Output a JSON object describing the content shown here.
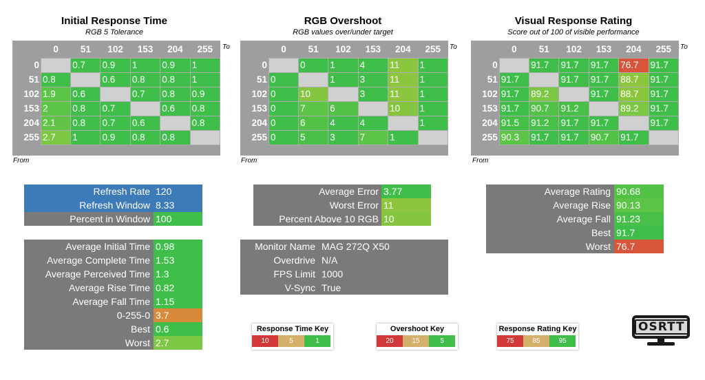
{
  "charts": [
    {
      "title": "Initial Response Time",
      "subtitle": "RGB 5 Tolerance",
      "to_label": "To",
      "from_label": "From",
      "cols": [
        "0",
        "51",
        "102",
        "153",
        "204",
        "255"
      ],
      "rows": [
        {
          "label": "0",
          "cells": [
            {
              "v": "",
              "c": ""
            },
            {
              "v": "0.7",
              "c": "#3fbf4a"
            },
            {
              "v": "0.9",
              "c": "#3fbf4a"
            },
            {
              "v": "1",
              "c": "#3fbf4a"
            },
            {
              "v": "0.9",
              "c": "#3fbf4a"
            },
            {
              "v": "1",
              "c": "#3fbf4a"
            }
          ]
        },
        {
          "label": "51",
          "cells": [
            {
              "v": "0.8",
              "c": "#3fbf4a"
            },
            {
              "v": "",
              "c": ""
            },
            {
              "v": "0.6",
              "c": "#3fbf4a"
            },
            {
              "v": "0.8",
              "c": "#3fbf4a"
            },
            {
              "v": "0.8",
              "c": "#3fbf4a"
            },
            {
              "v": "1",
              "c": "#3fbf4a"
            }
          ]
        },
        {
          "label": "102",
          "cells": [
            {
              "v": "1.9",
              "c": "#5cc447"
            },
            {
              "v": "0.6",
              "c": "#3fbf4a"
            },
            {
              "v": "",
              "c": ""
            },
            {
              "v": "0.7",
              "c": "#3fbf4a"
            },
            {
              "v": "0.8",
              "c": "#3fbf4a"
            },
            {
              "v": "0.9",
              "c": "#3fbf4a"
            }
          ]
        },
        {
          "label": "153",
          "cells": [
            {
              "v": "2",
              "c": "#5cc447"
            },
            {
              "v": "0.8",
              "c": "#3fbf4a"
            },
            {
              "v": "0.7",
              "c": "#3fbf4a"
            },
            {
              "v": "",
              "c": ""
            },
            {
              "v": "0.6",
              "c": "#3fbf4a"
            },
            {
              "v": "0.8",
              "c": "#3fbf4a"
            }
          ]
        },
        {
          "label": "204",
          "cells": [
            {
              "v": "2.1",
              "c": "#62c446"
            },
            {
              "v": "0.8",
              "c": "#3fbf4a"
            },
            {
              "v": "0.7",
              "c": "#3fbf4a"
            },
            {
              "v": "0.6",
              "c": "#3fbf4a"
            },
            {
              "v": "",
              "c": ""
            },
            {
              "v": "0.8",
              "c": "#3fbf4a"
            }
          ]
        },
        {
          "label": "255",
          "cells": [
            {
              "v": "2.7",
              "c": "#7cc743"
            },
            {
              "v": "1",
              "c": "#3fbf4a"
            },
            {
              "v": "0.9",
              "c": "#3fbf4a"
            },
            {
              "v": "0.8",
              "c": "#3fbf4a"
            },
            {
              "v": "0.8",
              "c": "#3fbf4a"
            },
            {
              "v": "",
              "c": ""
            }
          ]
        }
      ]
    },
    {
      "title": "RGB Overshoot",
      "subtitle": "RGB values over/under target",
      "to_label": "To",
      "from_label": "From",
      "cols": [
        "0",
        "51",
        "102",
        "153",
        "204",
        "255"
      ],
      "rows": [
        {
          "label": "0",
          "cells": [
            {
              "v": "",
              "c": ""
            },
            {
              "v": "0",
              "c": "#3fbf4a"
            },
            {
              "v": "1",
              "c": "#3fbf4a"
            },
            {
              "v": "4",
              "c": "#3fbf4a"
            },
            {
              "v": "11",
              "c": "#8cc63f"
            },
            {
              "v": "1",
              "c": "#3fbf4a"
            }
          ]
        },
        {
          "label": "51",
          "cells": [
            {
              "v": "0",
              "c": "#3fbf4a"
            },
            {
              "v": "",
              "c": ""
            },
            {
              "v": "1",
              "c": "#3fbf4a"
            },
            {
              "v": "3",
              "c": "#3fbf4a"
            },
            {
              "v": "11",
              "c": "#8cc63f"
            },
            {
              "v": "1",
              "c": "#3fbf4a"
            }
          ]
        },
        {
          "label": "102",
          "cells": [
            {
              "v": "0",
              "c": "#3fbf4a"
            },
            {
              "v": "10",
              "c": "#86c540"
            },
            {
              "v": "",
              "c": ""
            },
            {
              "v": "3",
              "c": "#3fbf4a"
            },
            {
              "v": "11",
              "c": "#8cc63f"
            },
            {
              "v": "1",
              "c": "#3fbf4a"
            }
          ]
        },
        {
          "label": "153",
          "cells": [
            {
              "v": "0",
              "c": "#3fbf4a"
            },
            {
              "v": "7",
              "c": "#5cc447"
            },
            {
              "v": "6",
              "c": "#52c247"
            },
            {
              "v": "",
              "c": ""
            },
            {
              "v": "10",
              "c": "#86c540"
            },
            {
              "v": "1",
              "c": "#3fbf4a"
            }
          ]
        },
        {
          "label": "204",
          "cells": [
            {
              "v": "0",
              "c": "#3fbf4a"
            },
            {
              "v": "6",
              "c": "#52c247"
            },
            {
              "v": "4",
              "c": "#3fbf4a"
            },
            {
              "v": "4",
              "c": "#3fbf4a"
            },
            {
              "v": "",
              "c": ""
            },
            {
              "v": "1",
              "c": "#3fbf4a"
            }
          ]
        },
        {
          "label": "255",
          "cells": [
            {
              "v": "0",
              "c": "#3fbf4a"
            },
            {
              "v": "5",
              "c": "#48c048"
            },
            {
              "v": "3",
              "c": "#3fbf4a"
            },
            {
              "v": "7",
              "c": "#5cc447"
            },
            {
              "v": "1",
              "c": "#3fbf4a"
            },
            {
              "v": "",
              "c": ""
            }
          ]
        }
      ]
    },
    {
      "title": "Visual Response Rating",
      "subtitle": "Score out of 100 of visible performance",
      "to_label": "To",
      "from_label": "From",
      "cols": [
        "0",
        "51",
        "102",
        "153",
        "204",
        "255"
      ],
      "rows": [
        {
          "label": "0",
          "cells": [
            {
              "v": "",
              "c": ""
            },
            {
              "v": "91.7",
              "c": "#3fbf4a"
            },
            {
              "v": "91.7",
              "c": "#3fbf4a"
            },
            {
              "v": "91.7",
              "c": "#3fbf4a"
            },
            {
              "v": "76.7",
              "c": "#d8553c"
            },
            {
              "v": "91.7",
              "c": "#3fbf4a"
            }
          ]
        },
        {
          "label": "51",
          "cells": [
            {
              "v": "91.7",
              "c": "#3fbf4a"
            },
            {
              "v": "",
              "c": ""
            },
            {
              "v": "91.7",
              "c": "#3fbf4a"
            },
            {
              "v": "91.7",
              "c": "#3fbf4a"
            },
            {
              "v": "88.7",
              "c": "#8cc63f"
            },
            {
              "v": "91.7",
              "c": "#3fbf4a"
            }
          ]
        },
        {
          "label": "102",
          "cells": [
            {
              "v": "91.7",
              "c": "#3fbf4a"
            },
            {
              "v": "89.2",
              "c": "#7cc743"
            },
            {
              "v": "",
              "c": ""
            },
            {
              "v": "91.7",
              "c": "#3fbf4a"
            },
            {
              "v": "88.7",
              "c": "#8cc63f"
            },
            {
              "v": "91.7",
              "c": "#3fbf4a"
            }
          ]
        },
        {
          "label": "153",
          "cells": [
            {
              "v": "91.7",
              "c": "#3fbf4a"
            },
            {
              "v": "90.7",
              "c": "#52c247"
            },
            {
              "v": "91.2",
              "c": "#48c048"
            },
            {
              "v": "",
              "c": ""
            },
            {
              "v": "89.2",
              "c": "#7cc743"
            },
            {
              "v": "91.7",
              "c": "#3fbf4a"
            }
          ]
        },
        {
          "label": "204",
          "cells": [
            {
              "v": "91.5",
              "c": "#44c049"
            },
            {
              "v": "91.2",
              "c": "#48c048"
            },
            {
              "v": "91.7",
              "c": "#3fbf4a"
            },
            {
              "v": "91.7",
              "c": "#3fbf4a"
            },
            {
              "v": "",
              "c": ""
            },
            {
              "v": "91.7",
              "c": "#3fbf4a"
            }
          ]
        },
        {
          "label": "255",
          "cells": [
            {
              "v": "90.3",
              "c": "#5cc447"
            },
            {
              "v": "91.7",
              "c": "#3fbf4a"
            },
            {
              "v": "91.7",
              "c": "#3fbf4a"
            },
            {
              "v": "90.7",
              "c": "#52c247"
            },
            {
              "v": "91.7",
              "c": "#3fbf4a"
            },
            {
              "v": "",
              "c": ""
            }
          ]
        }
      ]
    }
  ],
  "refresh_panel": [
    {
      "label": "Refresh Rate",
      "value": "120",
      "val_color": "#3d7ab8"
    },
    {
      "label": "Refresh Window",
      "value": "8.33",
      "val_color": "#3d7ab8"
    },
    {
      "label": "Percent in Window",
      "value": "100",
      "val_color": "#3fbf4a"
    }
  ],
  "response_panel": [
    {
      "label": "Average Initial Time",
      "value": "0.98",
      "val_color": "#3fbf4a"
    },
    {
      "label": "Average Complete Time",
      "value": "1.53",
      "val_color": "#3fbf4a"
    },
    {
      "label": "Average Perceived Time",
      "value": "1.3",
      "val_color": "#3fbf4a"
    },
    {
      "label": "Average Rise Time",
      "value": "0.82",
      "val_color": "#3fbf4a"
    },
    {
      "label": "Average Fall Time",
      "value": "1.15",
      "val_color": "#3fbf4a"
    },
    {
      "label": "0-255-0",
      "value": "3.7",
      "val_color": "#d88a3c"
    },
    {
      "label": "Best",
      "value": "0.6",
      "val_color": "#3fbf4a"
    },
    {
      "label": "Worst",
      "value": "2.7",
      "val_color": "#7cc743"
    }
  ],
  "overshoot_panel": [
    {
      "label": "Average Error",
      "value": "3.77",
      "val_color": "#3fbf4a"
    },
    {
      "label": "Worst Error",
      "value": "11",
      "val_color": "#8cc63f"
    },
    {
      "label": "Percent Above 10 RGB",
      "value": "10",
      "val_color": "#86c540"
    }
  ],
  "monitor_panel": [
    {
      "label": "Monitor Name",
      "value": "MAG 272Q X50"
    },
    {
      "label": "Overdrive",
      "value": "N/A"
    },
    {
      "label": "FPS Limit",
      "value": "1000"
    },
    {
      "label": "V-Sync",
      "value": "True"
    }
  ],
  "rating_panel": [
    {
      "label": "Average Rating",
      "value": "90.68",
      "val_color": "#52c247"
    },
    {
      "label": "Average Rise",
      "value": "90.13",
      "val_color": "#5cc447"
    },
    {
      "label": "Average Fall",
      "value": "91.23",
      "val_color": "#48c048"
    },
    {
      "label": "Best",
      "value": "91.7",
      "val_color": "#3fbf4a"
    },
    {
      "label": "Worst",
      "value": "76.7",
      "val_color": "#d8553c"
    }
  ],
  "keys": [
    {
      "title": "Response Time Key",
      "items": [
        {
          "v": "10",
          "c": "#d0383a"
        },
        {
          "v": "5",
          "c": "#d4b06a"
        },
        {
          "v": "1",
          "c": "#3fbf4a"
        }
      ]
    },
    {
      "title": "Overshoot Key",
      "items": [
        {
          "v": "20",
          "c": "#d0383a"
        },
        {
          "v": "15",
          "c": "#d4b06a"
        },
        {
          "v": "5",
          "c": "#3fbf4a"
        }
      ]
    },
    {
      "title": "Response Rating Key",
      "items": [
        {
          "v": "75",
          "c": "#d0383a"
        },
        {
          "v": "85",
          "c": "#d4b06a"
        },
        {
          "v": "95",
          "c": "#3fbf4a"
        }
      ]
    }
  ],
  "logo_text": "OSRTT"
}
